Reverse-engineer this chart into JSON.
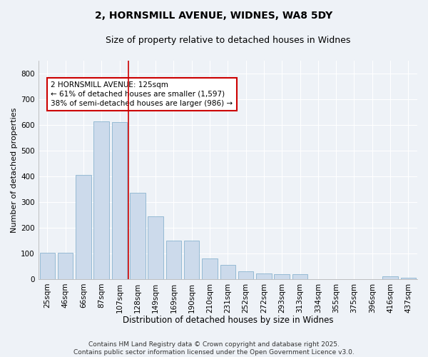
{
  "title1": "2, HORNSMILL AVENUE, WIDNES, WA8 5DY",
  "title2": "Size of property relative to detached houses in Widnes",
  "xlabel": "Distribution of detached houses by size in Widnes",
  "ylabel": "Number of detached properties",
  "categories": [
    "25sqm",
    "46sqm",
    "66sqm",
    "87sqm",
    "107sqm",
    "128sqm",
    "149sqm",
    "169sqm",
    "190sqm",
    "210sqm",
    "231sqm",
    "252sqm",
    "272sqm",
    "293sqm",
    "313sqm",
    "334sqm",
    "355sqm",
    "375sqm",
    "396sqm",
    "416sqm",
    "437sqm"
  ],
  "values": [
    103,
    103,
    405,
    615,
    610,
    335,
    245,
    150,
    150,
    80,
    55,
    30,
    22,
    20,
    20,
    0,
    0,
    0,
    0,
    10,
    5
  ],
  "bar_color": "#ccdaeb",
  "bar_edge_color": "#7aaac8",
  "vline_color": "#cc0000",
  "vline_x": 4.5,
  "annotation_text": "2 HORNSMILL AVENUE: 125sqm\n← 61% of detached houses are smaller (1,597)\n38% of semi-detached houses are larger (986) →",
  "annotation_box_color": "#ffffff",
  "annotation_box_edge": "#cc0000",
  "footer": "Contains HM Land Registry data © Crown copyright and database right 2025.\nContains public sector information licensed under the Open Government Licence v3.0.",
  "bg_color": "#eef2f7",
  "plot_bg_color": "#eef2f7",
  "ylim": [
    0,
    850
  ],
  "yticks": [
    0,
    100,
    200,
    300,
    400,
    500,
    600,
    700,
    800
  ],
  "grid_color": "#ffffff",
  "title1_fontsize": 10,
  "title2_fontsize": 9,
  "xlabel_fontsize": 8.5,
  "ylabel_fontsize": 8,
  "tick_fontsize": 7.5,
  "annotation_fontsize": 7.5,
  "footer_fontsize": 6.5
}
